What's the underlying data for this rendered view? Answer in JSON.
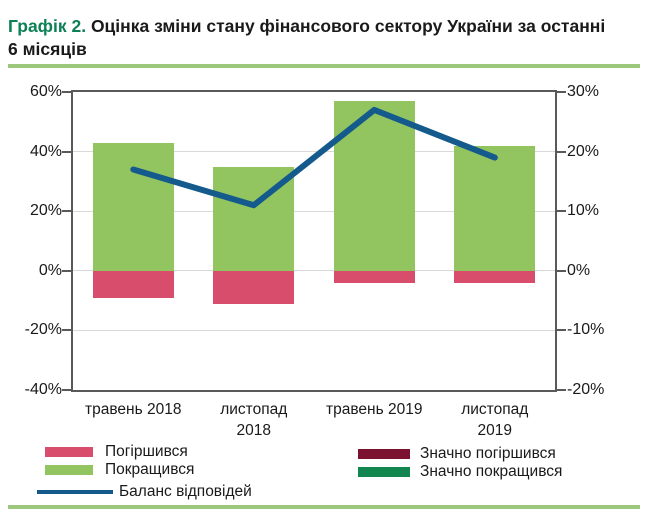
{
  "header": {
    "title_prefix": "Графік 2.",
    "title_rest": " Оцінка зміни стану фінансового сектору України за останні 6 місяців"
  },
  "colors": {
    "title_green": "#0D8054",
    "separator_green": "#9BC87C",
    "axis_border": "#595959",
    "gridline": "#D9D9D9"
  },
  "chart_data": {
    "type": "bar",
    "title": "Оцінка зміни стану фінансового сектору України за останні 6 місяців",
    "categories": [
      "травень 2018",
      "листопад 2018",
      "травень 2019",
      "листопад 2019"
    ],
    "categories_display": [
      [
        "травень 2018"
      ],
      [
        "листопад",
        "2018"
      ],
      [
        "травень 2019"
      ],
      [
        "листопад",
        "2019"
      ]
    ],
    "series": [
      {
        "name": "Погіршився",
        "type": "bar",
        "axis": "left",
        "color": "#D84D6C",
        "values": [
          -9,
          -11,
          -4,
          -4
        ]
      },
      {
        "name": "Покращився",
        "type": "bar",
        "axis": "left",
        "color": "#92C45F",
        "values": [
          43,
          35,
          57,
          42
        ]
      },
      {
        "name": "Значно погіршився",
        "type": "bar",
        "axis": "left",
        "color": "#7B1230",
        "values": [
          0,
          0,
          0,
          0
        ]
      },
      {
        "name": "Значно покращився",
        "type": "bar",
        "axis": "left",
        "color": "#11864F",
        "values": [
          0,
          0,
          0,
          0
        ]
      },
      {
        "name": "Баланс відповідей",
        "type": "line",
        "axis": "right",
        "color": "#155A8C",
        "values": [
          17,
          11,
          27,
          19
        ]
      }
    ],
    "left_axis": {
      "tick_labels": [
        "60%",
        "40%",
        "20%",
        "0%",
        "-20%",
        "-40%"
      ],
      "tick_values": [
        60,
        40,
        20,
        0,
        -20,
        -40
      ],
      "min": -40,
      "max": 60
    },
    "right_axis": {
      "tick_labels": [
        "30%",
        "20%",
        "10%",
        "0%",
        "-10%",
        "-20%"
      ],
      "tick_values": [
        30,
        20,
        10,
        0,
        -10,
        -20
      ],
      "min": -20,
      "max": 30
    },
    "grid": true,
    "legend_position": "bottom"
  },
  "legend": {
    "left": [
      {
        "label": "Погіршився",
        "color": "#D84D6C",
        "swatch": "box"
      },
      {
        "label": "Покращився",
        "color": "#92C45F",
        "swatch": "box"
      },
      {
        "label": "Баланс відповідей",
        "color": "#155A8C",
        "swatch": "line"
      }
    ],
    "right": [
      {
        "label": "Значно погіршився",
        "color": "#7B1230",
        "swatch": "box"
      },
      {
        "label": "Значно покращився",
        "color": "#11864F",
        "swatch": "box"
      }
    ]
  }
}
